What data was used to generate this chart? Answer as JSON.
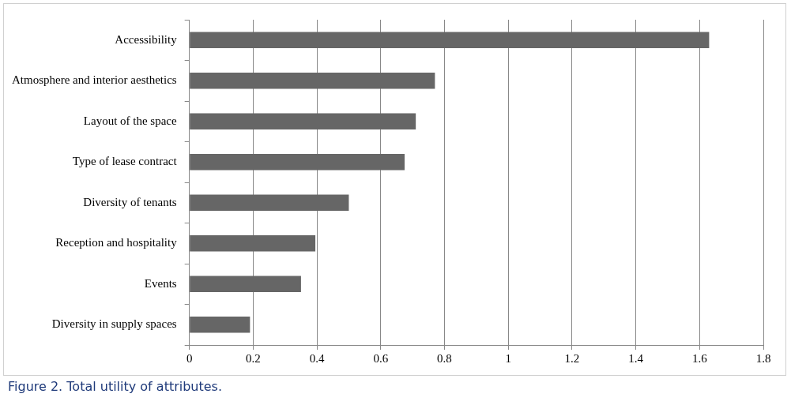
{
  "chart_data": {
    "type": "bar",
    "orientation": "horizontal",
    "categories": [
      "Accessibility",
      "Atmosphere and interior aesthetics",
      "Layout of the space",
      "Type of lease contract",
      "Diversity of tenants",
      "Reception and hospitality",
      "Events",
      "Diversity in supply spaces"
    ],
    "values": [
      1.63,
      0.77,
      0.71,
      0.675,
      0.5,
      0.395,
      0.35,
      0.19
    ],
    "color": "#666666",
    "xlim": [
      0,
      1.8
    ],
    "xticks": [
      0,
      0.2,
      0.4,
      0.6,
      0.8,
      1,
      1.2,
      1.4,
      1.6,
      1.8
    ],
    "grid": "x",
    "legend": false,
    "annotations": [
      "Figure 2. Total utility of attributes."
    ]
  }
}
